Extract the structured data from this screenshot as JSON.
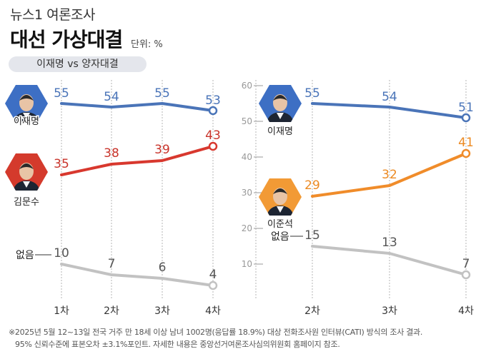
{
  "header": {
    "source": "뉴스1 여론조사",
    "title": "대선 가상대결",
    "unit": "단위: %",
    "subtitle": "이재명 vs 양자대결"
  },
  "chart_data": [
    {
      "type": "line",
      "categories": [
        "1차",
        "2차",
        "3차",
        "4차"
      ],
      "ylim": [
        0,
        60
      ],
      "series": [
        {
          "name": "이재명",
          "values": [
            55,
            54,
            55,
            53
          ],
          "color": "#4a74b8",
          "label_color": "#4a74b8"
        },
        {
          "name": "김문수",
          "values": [
            35,
            38,
            39,
            43
          ],
          "color": "#d8382e",
          "label_color": "#c8332a"
        },
        {
          "name": "없음",
          "values": [
            10,
            7,
            6,
            4
          ],
          "color": "#c2c2c2",
          "label_color": "#555555"
        }
      ]
    },
    {
      "type": "line",
      "categories": [
        "2차",
        "3차",
        "4차"
      ],
      "ylim": [
        0,
        60
      ],
      "yticks": [
        10,
        20,
        30,
        40,
        50,
        60
      ],
      "series": [
        {
          "name": "이재명",
          "values": [
            55,
            54,
            51
          ],
          "color": "#4a74b8",
          "label_color": "#4a74b8"
        },
        {
          "name": "이준석",
          "values": [
            29,
            32,
            41
          ],
          "color": "#f08c2a",
          "label_color": "#ec8a22"
        },
        {
          "name": "없음",
          "values": [
            15,
            13,
            7
          ],
          "color": "#c2c2c2",
          "label_color": "#555555"
        }
      ]
    }
  ],
  "footnote": [
    "※2025년 5월 12~13일 전국 거주 만 18세 이상 남녀 1002명(응답률 18.9%) 대상 전화조사원 인터뷰(CATI) 방식의 조사 결과.",
    "95% 신뢰수준에 표본오차 ±3.1%포인트. 자세한 내용은 중앙선거여론조사심의위원회 홈페이지 참조."
  ],
  "colors": {
    "blue": "#4a74b8",
    "red": "#d8382e",
    "orange": "#f08c2a",
    "gray": "#c2c2c2",
    "hexagon_blue": "#3d6fc4",
    "hexagon_red": "#d43a2c",
    "hexagon_orange": "#f29a35"
  }
}
